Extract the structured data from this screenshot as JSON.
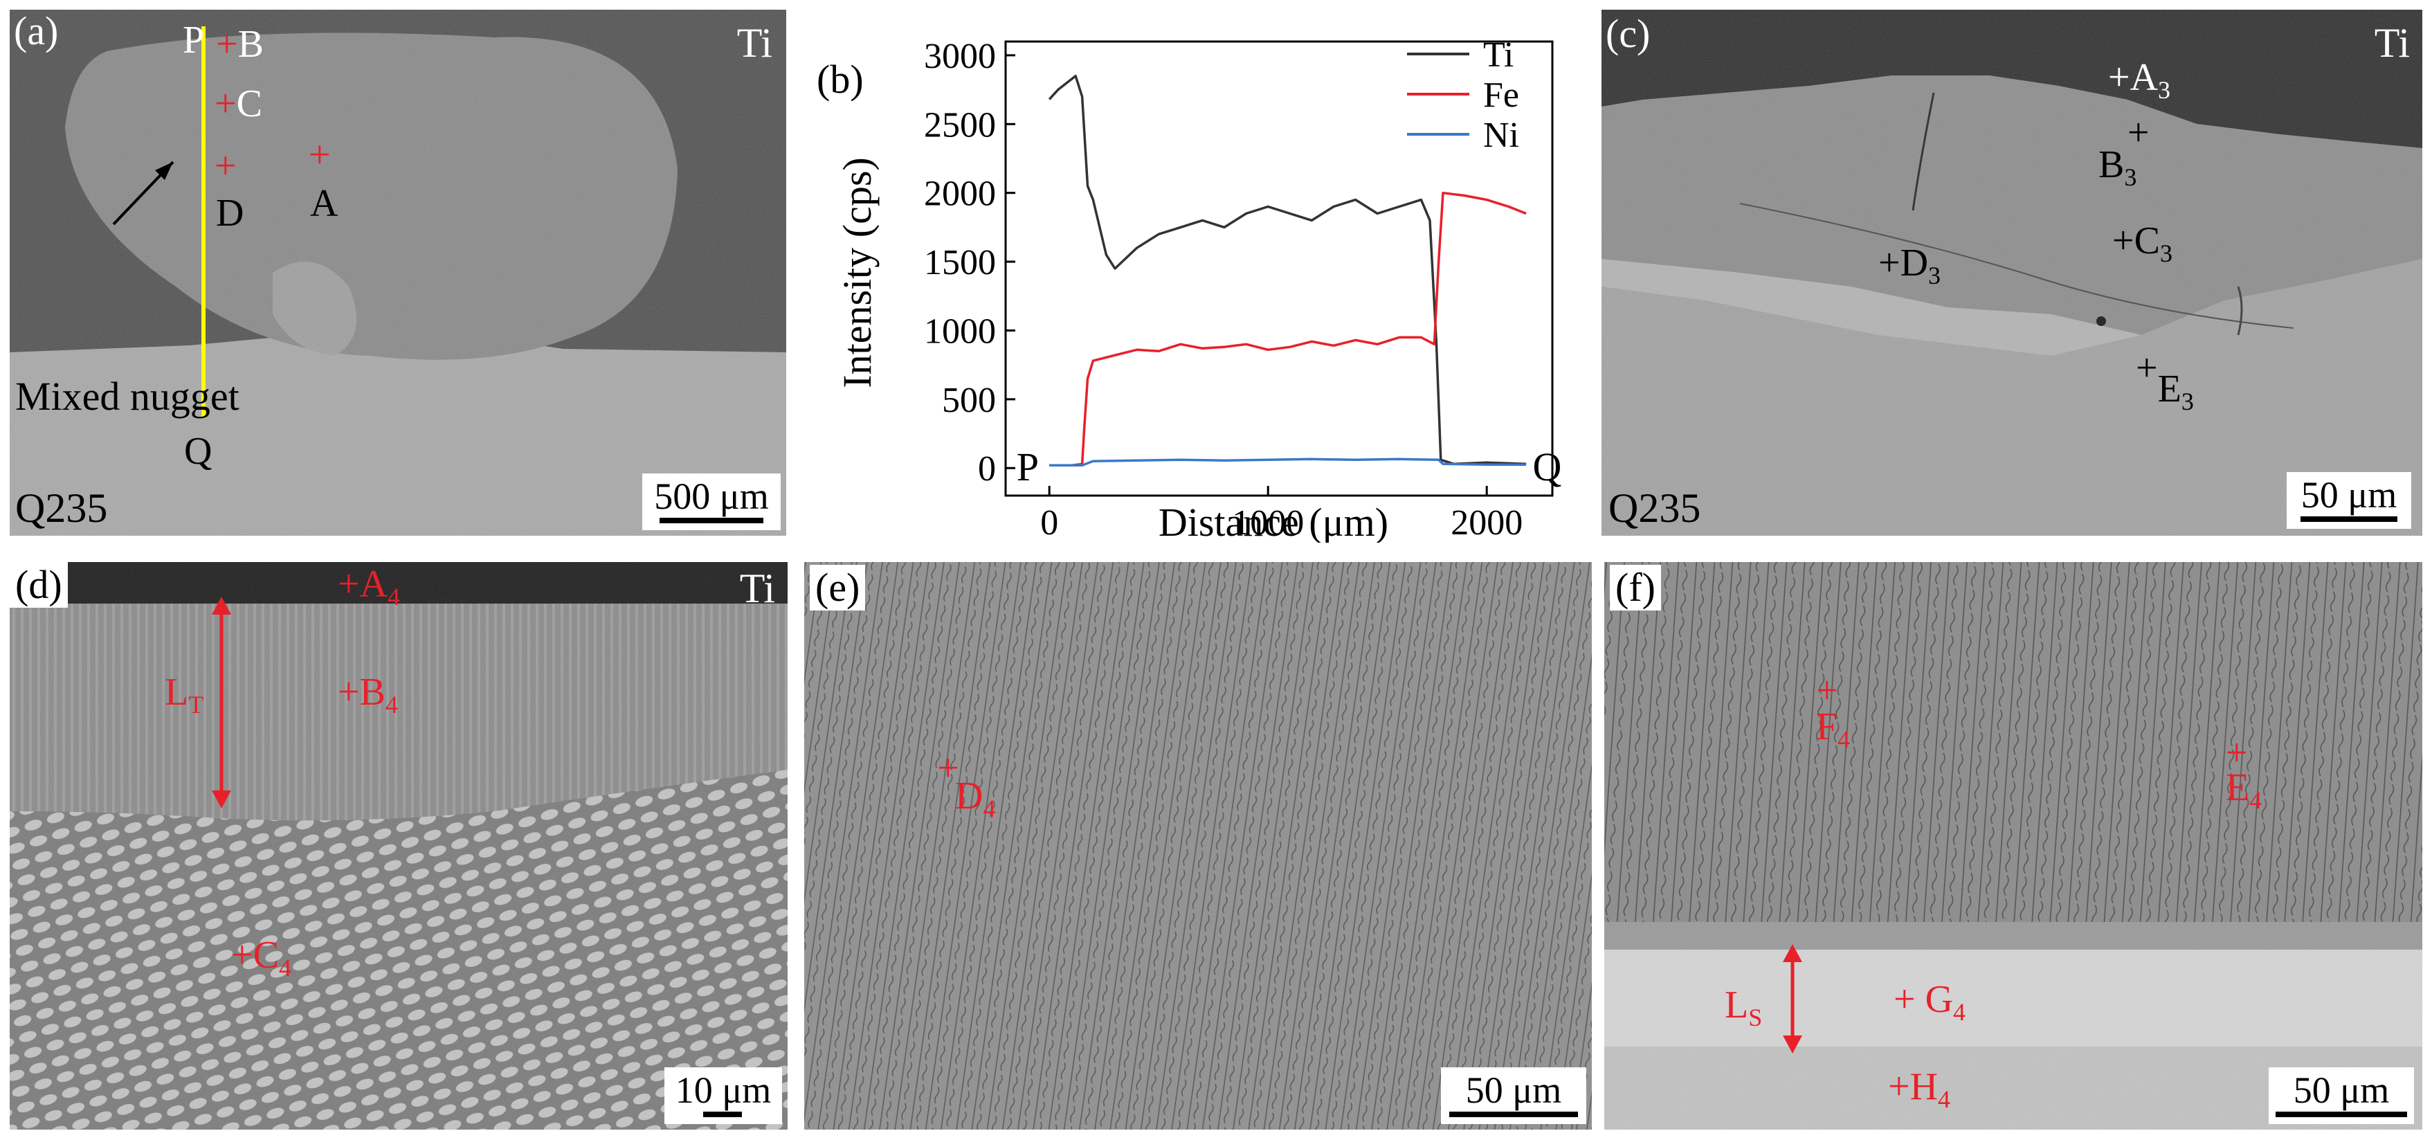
{
  "panels": {
    "a": {
      "label": "(a)",
      "corner_top": "Ti",
      "corner_bottom": "Q235",
      "line_top": "P",
      "line_bottom": "Q",
      "points": [
        "B",
        "C",
        "D",
        "A"
      ],
      "annotation": "Mixed nugget",
      "scale": "500 μm"
    },
    "b": {
      "label": "(b)"
    },
    "c": {
      "label": "(c)",
      "corner_top": "Ti",
      "corner_bottom": "Q235",
      "points": [
        {
          "base": "A",
          "sub": "3"
        },
        {
          "base": "B",
          "sub": "3"
        },
        {
          "base": "C",
          "sub": "3"
        },
        {
          "base": "D",
          "sub": "3"
        },
        {
          "base": "E",
          "sub": "3"
        }
      ],
      "scale": "50 μm"
    },
    "d": {
      "label": "(d)",
      "corner_top": "Ti",
      "points": [
        {
          "base": "A",
          "sub": "4"
        },
        {
          "base": "B",
          "sub": "4"
        },
        {
          "base": "C",
          "sub": "4"
        }
      ],
      "layer": {
        "base": "L",
        "sub": "T"
      },
      "scale": "10 μm"
    },
    "e": {
      "label": "(e)",
      "points": [
        {
          "base": "D",
          "sub": "4"
        }
      ],
      "scale": "50 μm"
    },
    "f": {
      "label": "(f)",
      "points": [
        {
          "base": "F",
          "sub": "4"
        },
        {
          "base": "E",
          "sub": "4"
        },
        {
          "base": "G",
          "sub": "4"
        },
        {
          "base": "H",
          "sub": "4"
        }
      ],
      "layer": {
        "base": "L",
        "sub": "S"
      },
      "scale": "50 μm"
    }
  },
  "chart_data": {
    "type": "line",
    "title": "",
    "xlabel": "Distance (μm)",
    "ylabel": "Intensity (cps)",
    "xlim": [
      -200,
      2300
    ],
    "ylim": [
      -200,
      3100
    ],
    "xticks": [
      0,
      1000,
      2000
    ],
    "yticks": [
      0,
      500,
      1000,
      1500,
      2000,
      2500,
      3000
    ],
    "start_label": "P",
    "end_label": "Q",
    "legend_position": "top-right",
    "series": [
      {
        "name": "Ti",
        "color": "#333333",
        "x": [
          0,
          40,
          80,
          120,
          150,
          175,
          200,
          260,
          300,
          400,
          500,
          600,
          700,
          800,
          900,
          1000,
          1100,
          1200,
          1300,
          1400,
          1500,
          1600,
          1700,
          1740,
          1770,
          1790,
          1850,
          2000,
          2180
        ],
        "y": [
          2680,
          2750,
          2800,
          2850,
          2700,
          2050,
          1950,
          1550,
          1450,
          1600,
          1700,
          1750,
          1800,
          1750,
          1850,
          1900,
          1850,
          1800,
          1900,
          1950,
          1850,
          1900,
          1950,
          1800,
          900,
          60,
          30,
          40,
          30
        ]
      },
      {
        "name": "Fe",
        "color": "#e8202a",
        "x": [
          0,
          100,
          150,
          160,
          175,
          200,
          300,
          400,
          500,
          600,
          700,
          800,
          900,
          1000,
          1100,
          1200,
          1300,
          1400,
          1500,
          1600,
          1700,
          1760,
          1780,
          1800,
          1900,
          2000,
          2100,
          2180
        ],
        "y": [
          20,
          20,
          30,
          300,
          650,
          780,
          820,
          860,
          850,
          900,
          870,
          880,
          900,
          860,
          880,
          920,
          890,
          930,
          900,
          950,
          950,
          900,
          1500,
          2000,
          1980,
          1950,
          1900,
          1850
        ]
      },
      {
        "name": "Ni",
        "color": "#3a78c8",
        "x": [
          0,
          150,
          200,
          400,
          600,
          800,
          1000,
          1200,
          1400,
          1600,
          1780,
          1800,
          2000,
          2180
        ],
        "y": [
          20,
          20,
          50,
          55,
          60,
          55,
          60,
          65,
          60,
          65,
          60,
          30,
          25,
          25
        ]
      }
    ]
  }
}
